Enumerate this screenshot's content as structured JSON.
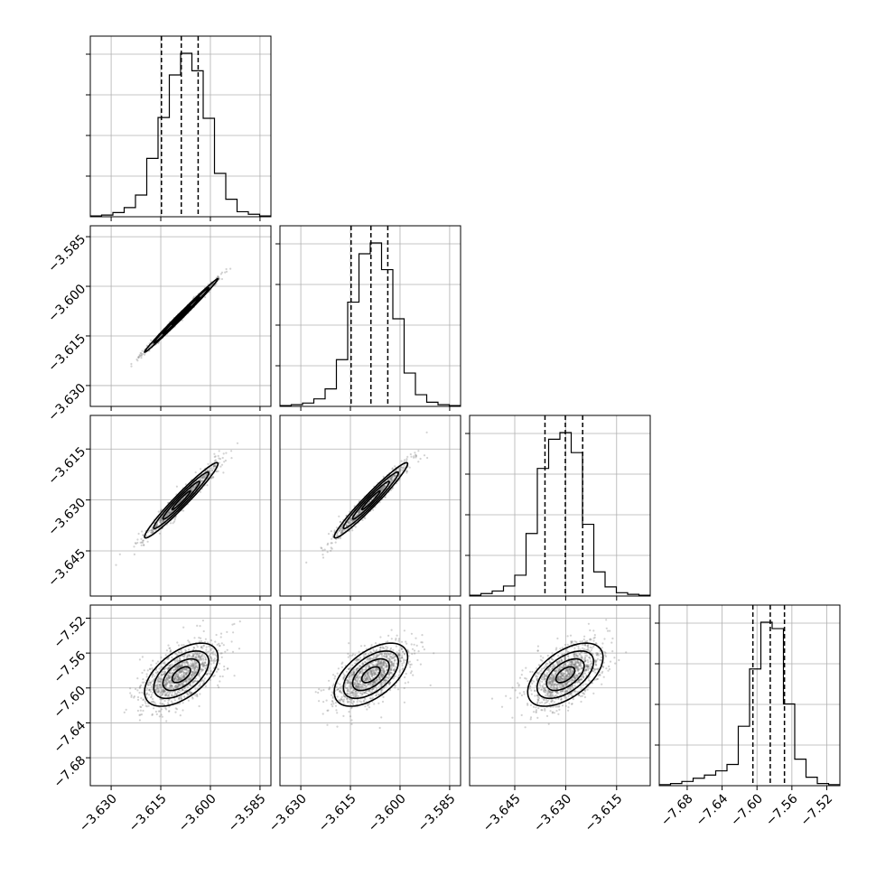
{
  "chart_data": {
    "type": "corner",
    "n_params": 4,
    "ranges": [
      [
        -3.6363,
        -3.5817
      ],
      [
        -3.6363,
        -3.5817
      ],
      [
        -3.6583,
        -3.6051
      ],
      [
        -7.712,
        -7.505
      ]
    ],
    "ticks": [
      [
        -3.63,
        -3.615,
        -3.6,
        -3.585
      ],
      [
        -3.63,
        -3.615,
        -3.6,
        -3.585
      ],
      [
        -3.645,
        -3.63,
        -3.615
      ],
      [
        -7.68,
        -7.64,
        -7.6,
        -7.56,
        -7.52
      ]
    ],
    "tick_labels": [
      [
        "−3.630",
        "−3.615",
        "−3.600",
        "−3.585"
      ],
      [
        "−3.630",
        "−3.615",
        "−3.600",
        "−3.585"
      ],
      [
        "−3.645",
        "−3.630",
        "−3.615"
      ],
      [
        "−7.68",
        "−7.64",
        "−7.60",
        "−7.56",
        "−7.52"
      ]
    ],
    "quantiles": [
      [
        -3.6148,
        -3.6088,
        -3.6037
      ],
      [
        -3.6148,
        -3.6088,
        -3.6037
      ],
      [
        -3.6361,
        -3.6301,
        -3.625
      ],
      [
        -7.6047,
        -7.5848,
        -7.5685
      ]
    ],
    "histograms": [
      {
        "counts": [
          1,
          2,
          5,
          11,
          26,
          70,
          119,
          170,
          196,
          175,
          118,
          52,
          21,
          6,
          3,
          1
        ]
      },
      {
        "counts": [
          1,
          2,
          4,
          9,
          21,
          56,
          125,
          183,
          196,
          164,
          105,
          40,
          14,
          5,
          2,
          1
        ]
      },
      {
        "counts": [
          1,
          3,
          6,
          12,
          25,
          75,
          153,
          188,
          196,
          172,
          86,
          29,
          11,
          4,
          2,
          1
        ]
      },
      {
        "counts": [
          1,
          2,
          4,
          7,
          10,
          14,
          20,
          56,
          110,
          154,
          148,
          77,
          25,
          8,
          2,
          1
        ]
      }
    ],
    "correlations": {
      "1-0": 0.995,
      "2-0": 0.97,
      "2-1": 0.97,
      "3-0": 0.55,
      "3-1": 0.55,
      "3-2": 0.55
    },
    "grid": true,
    "colors": {
      "points": "#7f7f7f",
      "contour": "#000000",
      "core": "#000000"
    }
  }
}
